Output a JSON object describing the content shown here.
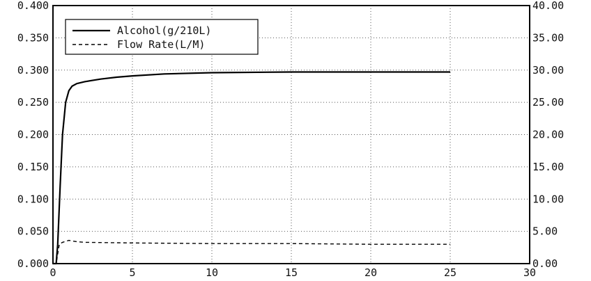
{
  "chart_data": {
    "type": "line",
    "title": "",
    "xlabel": "",
    "ylabel": "",
    "xlim": [
      0,
      30
    ],
    "ylim_left": [
      0,
      0.4
    ],
    "ylim_right": [
      0,
      40
    ],
    "grid": true,
    "legend_position": "top-left",
    "x_ticks": [
      "0",
      "5",
      "10",
      "15",
      "20",
      "25",
      "30"
    ],
    "y_left_ticks": [
      "0.000",
      "0.050",
      "0.100",
      "0.150",
      "0.200",
      "0.250",
      "0.300",
      "0.350",
      "0.400"
    ],
    "y_right_ticks": [
      "0.00",
      "5.00",
      "10.00",
      "15.00",
      "20.00",
      "25.00",
      "30.00",
      "35.00",
      "40.00"
    ],
    "series": [
      {
        "name": "Alcohol(g/210L)",
        "axis": "left",
        "style": "solid",
        "color": "#000000",
        "x": [
          0,
          0.2,
          0.3,
          0.45,
          0.6,
          0.8,
          1.0,
          1.2,
          1.5,
          2,
          3,
          4,
          5,
          7,
          10,
          15,
          20,
          25
        ],
        "y": [
          0.0,
          0.0,
          0.03,
          0.12,
          0.2,
          0.25,
          0.268,
          0.275,
          0.279,
          0.282,
          0.286,
          0.289,
          0.291,
          0.294,
          0.296,
          0.297,
          0.297,
          0.297
        ]
      },
      {
        "name": "Flow Rate(L/M)",
        "axis": "right",
        "style": "dashed",
        "color": "#000000",
        "x": [
          0,
          0.2,
          0.3,
          0.4,
          0.6,
          1.0,
          1.5,
          2,
          5,
          10,
          15,
          20,
          25
        ],
        "y": [
          0.0,
          0.0,
          1.5,
          3.0,
          3.3,
          3.6,
          3.4,
          3.3,
          3.2,
          3.1,
          3.1,
          3.0,
          3.0
        ]
      }
    ]
  }
}
